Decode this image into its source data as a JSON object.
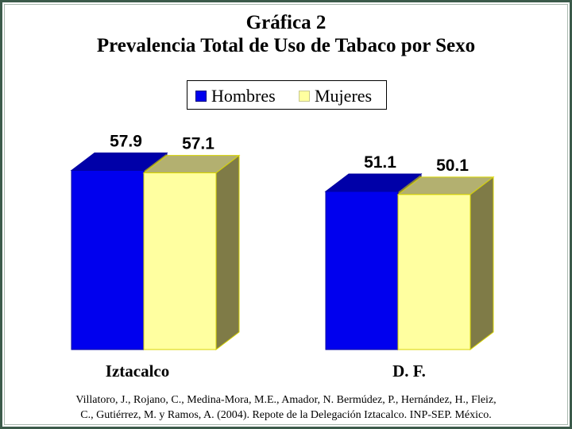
{
  "title": {
    "line1": "Gráfica 2",
    "line2": "Prevalencia Total de Uso de Tabaco por Sexo"
  },
  "legend": [
    {
      "label": "Hombres",
      "color": "#0000ee"
    },
    {
      "label": "Mujeres",
      "color": "#ffffa0"
    }
  ],
  "colors": {
    "hombres_front": "#0000ee",
    "hombres_top": "#0000a8",
    "mujeres_front": "#ffffa0",
    "mujeres_top": "#b3b070",
    "side": "#7f7b47",
    "frame": "#3b5a4a"
  },
  "chart_data": {
    "type": "bar",
    "categories": [
      "Iztacalco",
      "D. F."
    ],
    "series": [
      {
        "name": "Hombres",
        "values": [
          57.9,
          51.1
        ]
      },
      {
        "name": "Mujeres",
        "values": [
          57.1,
          50.1
        ]
      }
    ],
    "value_labels": [
      [
        "57.9",
        "57.1"
      ],
      [
        "51.1",
        "50.1"
      ]
    ],
    "title": "Gráfica 2 Prevalencia Total de Uso de Tabaco por Sexo",
    "xlabel": "",
    "ylabel": "",
    "style": "3d-bar",
    "grid": false,
    "legend_position": "top-center"
  },
  "citation": {
    "line1": "Villatoro, J., Rojano, C., Medina-Mora, M.E., Amador, N. Bermúdez, P., Hernández, H., Fleiz,",
    "line2": "C., Gutiérrez, M. y Ramos, A. (2004). Repote de la Delegación Iztacalco. INP-SEP. México."
  }
}
